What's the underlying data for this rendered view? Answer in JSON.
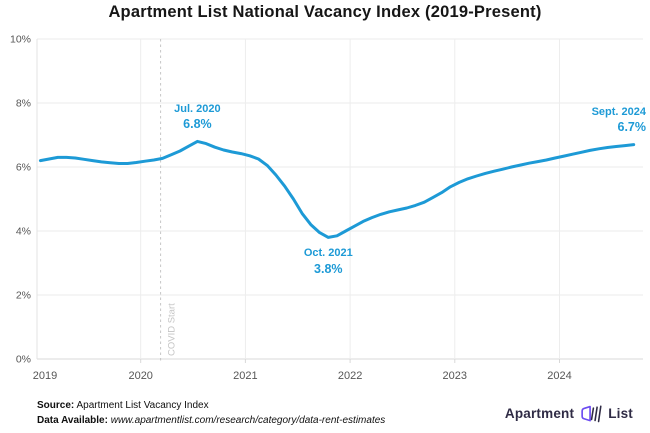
{
  "chart_data": {
    "type": "line",
    "title": "Apartment List National Vacancy Index (2019-Present)",
    "xlabel": "",
    "ylabel": "",
    "ylim": [
      0,
      10
    ],
    "grid": true,
    "line_color": "#1D9AD6",
    "y_ticks": [
      "0%",
      "2%",
      "4%",
      "6%",
      "8%",
      "10%"
    ],
    "x_ticks": [
      "2019",
      "2020",
      "2021",
      "2022",
      "2023",
      "2024"
    ],
    "series": [
      {
        "name": "National Vacancy Index",
        "start_month": "2019-01",
        "end_month": "2024-09",
        "monthly_values_pct": [
          6.2,
          6.25,
          6.3,
          6.3,
          6.28,
          6.24,
          6.2,
          6.16,
          6.13,
          6.11,
          6.11,
          6.14,
          6.18,
          6.22,
          6.27,
          6.38,
          6.5,
          6.65,
          6.8,
          6.73,
          6.62,
          6.53,
          6.47,
          6.42,
          6.35,
          6.25,
          6.05,
          5.75,
          5.4,
          5.0,
          4.55,
          4.2,
          3.95,
          3.8,
          3.85,
          4.0,
          4.15,
          4.3,
          4.42,
          4.52,
          4.6,
          4.66,
          4.72,
          4.8,
          4.9,
          5.05,
          5.2,
          5.38,
          5.52,
          5.63,
          5.72,
          5.8,
          5.87,
          5.93,
          6.0,
          6.06,
          6.12,
          6.17,
          6.22,
          6.28,
          6.34,
          6.4,
          6.46,
          6.52,
          6.57,
          6.61,
          6.64,
          6.67,
          6.7
        ]
      }
    ],
    "annotations": [
      {
        "label": "Jul. 2020",
        "value": "6.8%",
        "month_index": 18,
        "side": "above",
        "align": "center"
      },
      {
        "label": "Oct. 2021",
        "value": "3.8%",
        "month_index": 33,
        "side": "below",
        "align": "center"
      },
      {
        "label": "Sept. 2024",
        "value": "6.7%",
        "month_index": 68,
        "side": "above",
        "align": "right"
      }
    ],
    "event_marker": {
      "label": "COVID Start",
      "x_year": 2020.19
    }
  },
  "footer": {
    "source_label": "Source:",
    "source_text": "Apartment List Vacancy Index",
    "data_label": "Data Available:",
    "data_url": "www.apartmentlist.com/research/category/data-rent-estimates"
  },
  "logo": {
    "part1": "Apartment",
    "part2": "List"
  },
  "colors": {
    "line": "#1D9AD6",
    "annotation": "#1D9AD6",
    "grid": "#EBEBEB",
    "axis": "#D8D8D8",
    "tick_text": "#565656",
    "covid_line": "#C6C6C6",
    "covid_text": "#C4C4C4",
    "logo_navy": "#2F2B45",
    "logo_purple": "#6C4CF1"
  }
}
